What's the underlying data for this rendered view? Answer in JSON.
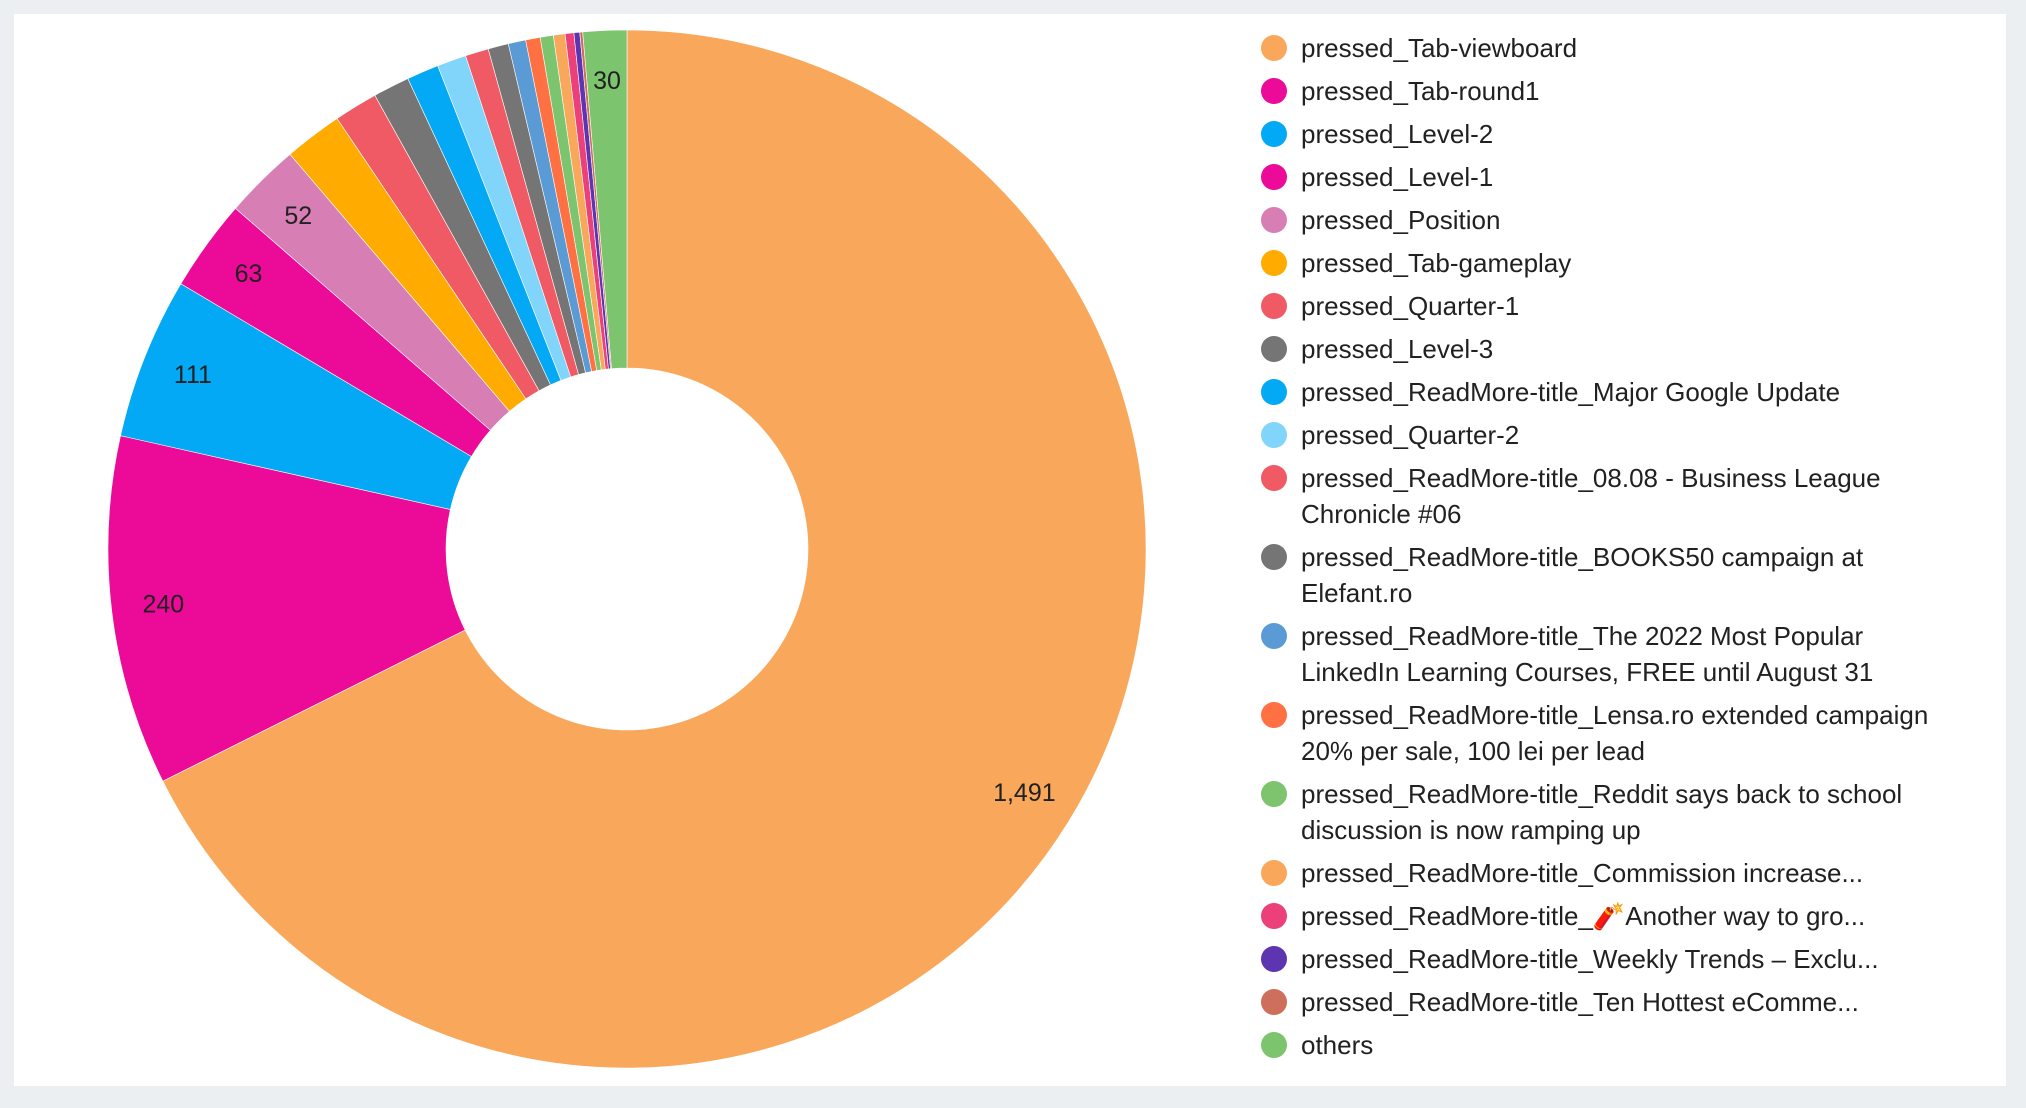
{
  "chart_data": {
    "type": "pie",
    "variant": "donut",
    "title": "",
    "legend_position": "right",
    "slices": [
      {
        "label": "pressed_Tab-viewboard",
        "value": 1491,
        "color": "#f9a75b",
        "data_label": "1,491"
      },
      {
        "label": "pressed_Tab-round1",
        "value": 240,
        "color": "#ec0a99",
        "data_label": "240"
      },
      {
        "label": "pressed_Level-2",
        "value": 111,
        "color": "#03a9f4",
        "data_label": "111"
      },
      {
        "label": "pressed_Level-1",
        "value": 63,
        "color": "#ec0a99",
        "data_label": "63"
      },
      {
        "label": "pressed_Position",
        "value": 52,
        "color": "#d77fb4",
        "data_label": "52"
      },
      {
        "label": "pressed_Tab-gameplay",
        "value": 40,
        "color": "#ffab00"
      },
      {
        "label": "pressed_Quarter-1",
        "value": 30,
        "color": "#ef5a65"
      },
      {
        "label": "pressed_Level-3",
        "value": 25,
        "color": "#757575"
      },
      {
        "label": "pressed_ReadMore-title_Major Google Update",
        "value": 22,
        "color": "#03a9f4"
      },
      {
        "label": "pressed_Quarter-2",
        "value": 20,
        "color": "#81d4fa"
      },
      {
        "label": "pressed_ReadMore-title_08.08 - Business League Chronicle #06",
        "value": 16,
        "color": "#ef5a65"
      },
      {
        "label": "pressed_ReadMore-title_BOOKS50 campaign at Elefant.ro",
        "value": 14,
        "color": "#757575"
      },
      {
        "label": "pressed_ReadMore-title_The 2022 Most Popular LinkedIn Learning Courses, FREE until August 31",
        "value": 12,
        "color": "#5b9bd5"
      },
      {
        "label": "pressed_ReadMore-title_Lensa.ro extended campaign 20% per sale, 100 lei per lead",
        "value": 10,
        "color": "#ff7043"
      },
      {
        "label": "pressed_ReadMore-title_Reddit says back to school discussion is now ramping up",
        "value": 9,
        "color": "#7cc46e"
      },
      {
        "label": "pressed_ReadMore-title_Commission increase...",
        "value": 8,
        "color": "#f9a75b"
      },
      {
        "label": "pressed_ReadMore-title_🧨Another way to gro...",
        "value": 6,
        "color": "#ec407a"
      },
      {
        "label": "pressed_ReadMore-title_Weekly Trends – Exclu...",
        "value": 4,
        "color": "#5e35b1"
      },
      {
        "label": "pressed_ReadMore-title_Ten Hottest eComme...",
        "value": 2,
        "color": "#cd6f5a"
      },
      {
        "label": "others",
        "value": 30,
        "color": "#7cc46e",
        "data_label": "30"
      }
    ]
  }
}
